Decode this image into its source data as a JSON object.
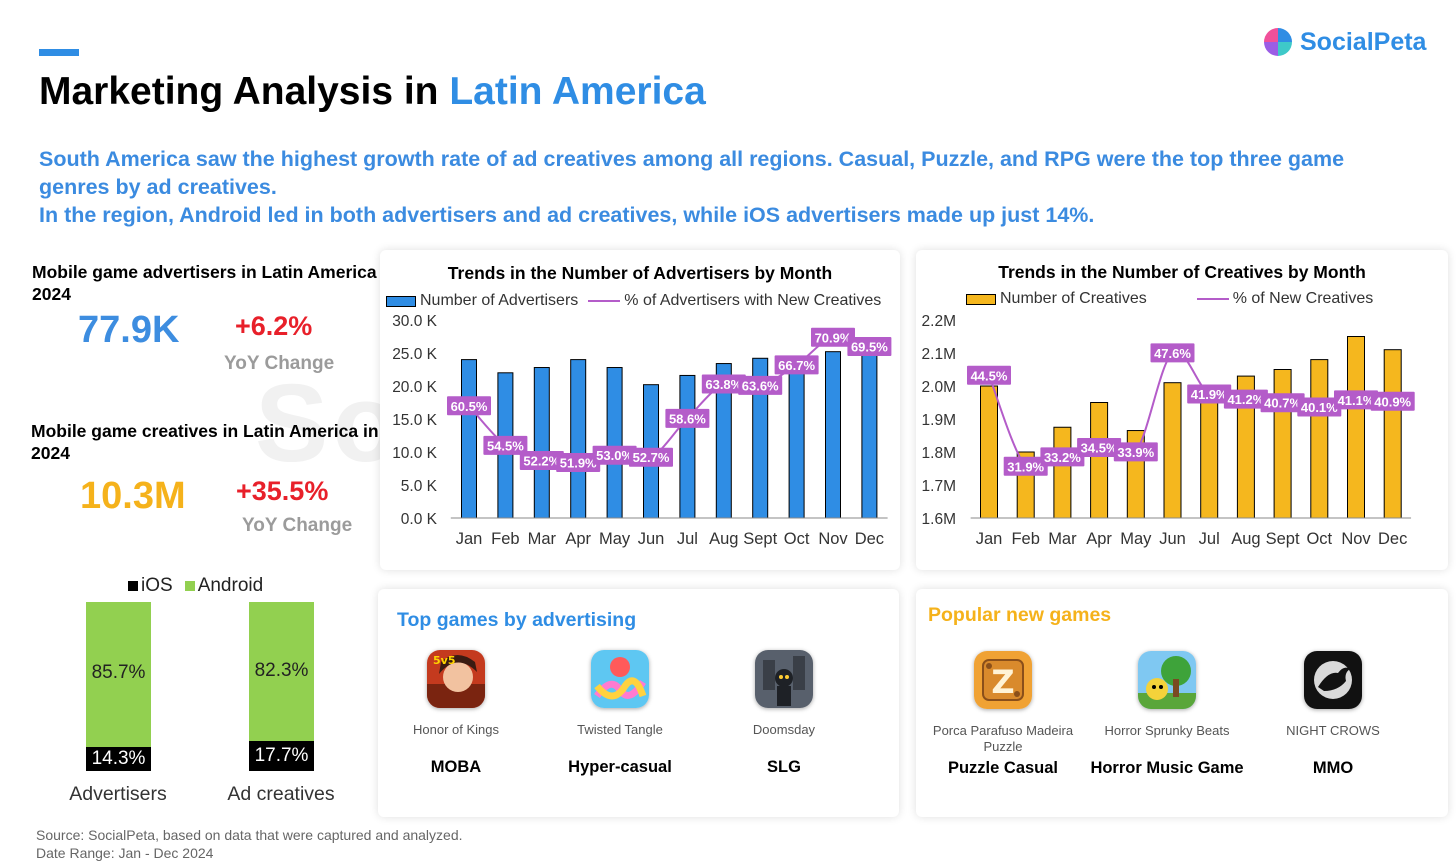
{
  "brand": {
    "logo_text": "SocialPeta",
    "watermark": "SocialPeta"
  },
  "header": {
    "title_main": "Marketing Analysis in ",
    "title_highlight": "Latin America",
    "subtitle_line1": "South America saw the highest growth rate of ad creatives among all regions. Casual, Puzzle, and RPG were the top three game genres by ad creatives.",
    "subtitle_line2": "In the region, Android led in both advertisers and ad creatives, while iOS advertisers made up just 14%."
  },
  "stats": {
    "advertisers": {
      "label": "Mobile game advertisers in Latin America in 2024",
      "value": "77.9K",
      "change": "+6.2%",
      "change_label": "YoY Change",
      "color": "#3d8de0"
    },
    "creatives": {
      "label": "Mobile game creatives in Latin America in 2024",
      "value": "10.3M",
      "change": "+35.5%",
      "change_label": "YoY Change",
      "color": "#f5b21b"
    }
  },
  "chart_data": [
    {
      "type": "bar",
      "title": "Trends in the Number of Advertisers by Month",
      "categories": [
        "Jan",
        "Feb",
        "Mar",
        "Apr",
        "May",
        "Jun",
        "Jul",
        "Aug",
        "Sept",
        "Oct",
        "Nov",
        "Dec"
      ],
      "series": [
        {
          "name": "Number of Advertisers",
          "type": "bar",
          "color": "#2f8de4",
          "values": [
            24000,
            22000,
            22800,
            24000,
            22800,
            20200,
            21600,
            23400,
            24200,
            24400,
            25200,
            24800
          ]
        },
        {
          "name": "% of Advertisers with New Creatives",
          "type": "line",
          "color": "#b45cc9",
          "values": [
            60.5,
            54.5,
            52.2,
            51.9,
            53.0,
            52.7,
            58.6,
            63.8,
            63.6,
            66.7,
            70.9,
            69.5
          ],
          "labels": [
            "60.5%",
            "54.5%",
            "52.2%",
            "51.9%",
            "53.0%",
            "52.7%",
            "58.6%",
            "63.8%",
            "63.6%",
            "66.7%",
            "70.9%",
            "69.5%"
          ]
        }
      ],
      "y_ticks": [
        "0.0 K",
        "5.0 K",
        "10.0 K",
        "15.0 K",
        "20.0 K",
        "25.0 K",
        "30.0 K"
      ],
      "ylim": [
        0,
        30000
      ],
      "legend": "top"
    },
    {
      "type": "bar",
      "title": "Trends in the Number of Creatives by Month",
      "categories": [
        "Jan",
        "Feb",
        "Mar",
        "Apr",
        "May",
        "Jun",
        "Jul",
        "Aug",
        "Sept",
        "Oct",
        "Nov",
        "Dec"
      ],
      "series": [
        {
          "name": "Number of Creatives",
          "type": "bar",
          "color": "#f5b71e",
          "values": [
            2000000,
            1800000,
            1875000,
            1950000,
            1865000,
            2010000,
            1995000,
            2030000,
            2050000,
            2080000,
            2150000,
            2110000
          ]
        },
        {
          "name": "% of New Creatives",
          "type": "line",
          "color": "#b45cc9",
          "values": [
            44.5,
            31.9,
            33.2,
            34.5,
            33.9,
            47.6,
            41.9,
            41.2,
            40.7,
            40.1,
            41.1,
            40.9
          ],
          "labels": [
            "44.5%",
            "31.9%",
            "33.2%",
            "34.5%",
            "33.9%",
            "47.6%",
            "41.9%",
            "41.2%",
            "40.7%",
            "40.1%",
            "41.1%",
            "40.9%"
          ]
        }
      ],
      "y_ticks": [
        "1.6M",
        "1.7M",
        "1.8M",
        "1.9M",
        "2.0M",
        "2.1M",
        "2.2M"
      ],
      "ylim": [
        1600000,
        2200000
      ],
      "legend": "top"
    },
    {
      "type": "bar",
      "stacked": true,
      "categories": [
        "Advertisers",
        "Ad creatives"
      ],
      "series": [
        {
          "name": "iOS",
          "color": "#000000",
          "values": [
            14.3,
            17.7
          ],
          "labels": [
            "14.3%",
            "17.7%"
          ]
        },
        {
          "name": "Android",
          "color": "#92d050",
          "values": [
            85.7,
            82.3
          ],
          "labels": [
            "85.7%",
            "82.3%"
          ]
        }
      ],
      "legend": "top"
    }
  ],
  "top_games": {
    "title": "Top games by advertising",
    "items": [
      {
        "name": "Honor of Kings",
        "genre": "MOBA",
        "icon": "honor-of-kings-icon"
      },
      {
        "name": "Twisted Tangle",
        "genre": "Hyper-casual",
        "icon": "twisted-tangle-icon"
      },
      {
        "name": "Doomsday",
        "genre": "SLG",
        "icon": "doomsday-icon"
      }
    ]
  },
  "new_games": {
    "title": "Popular new games",
    "items": [
      {
        "name": "Porca Parafuso Madeira Puzzle",
        "genre": "Puzzle Casual",
        "icon": "porca-parafuso-icon"
      },
      {
        "name": "Horror Sprunky Beats",
        "genre": "Horror Music Game",
        "icon": "horror-sprunky-icon"
      },
      {
        "name": "NIGHT CROWS",
        "genre": "MMO",
        "icon": "night-crows-icon"
      }
    ]
  },
  "footer": {
    "source": "Source: SocialPeta, based on data that were captured and analyzed.",
    "date_range": "Date Range: Jan - Dec 2024"
  }
}
